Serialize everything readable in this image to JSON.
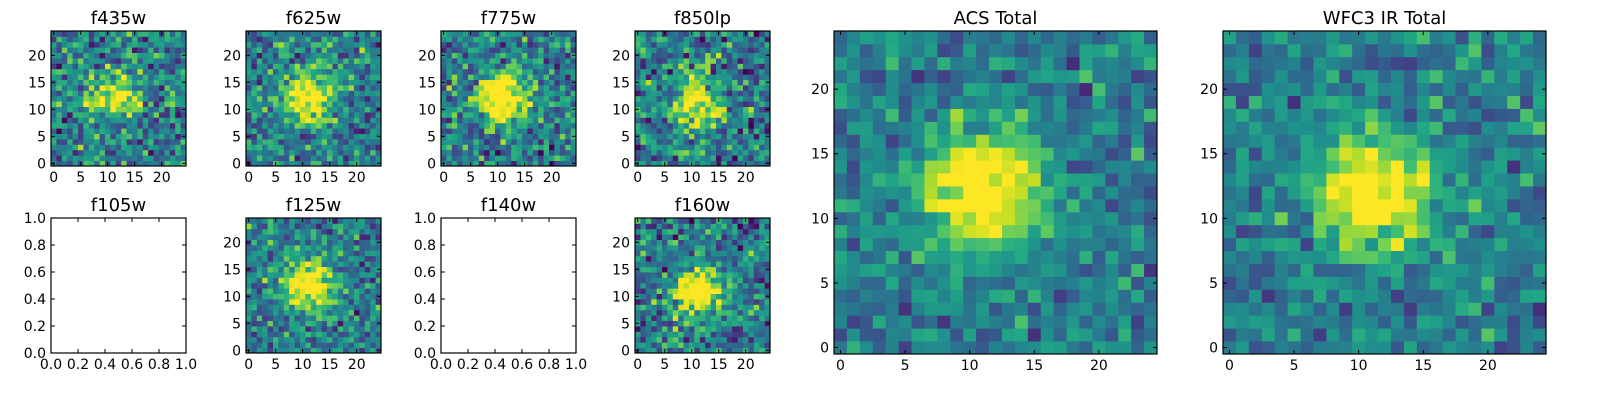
{
  "chart_data": [
    {
      "type": "heatmap",
      "title": "f435w",
      "has_image": true,
      "xlim": [
        -0.5,
        24.5
      ],
      "ylim": [
        -0.5,
        24.5
      ],
      "xticks": [
        0,
        5,
        10,
        15,
        20
      ],
      "yticks": [
        0,
        5,
        10,
        15,
        20
      ],
      "tick_labels_x": [
        "0",
        "5",
        "10",
        "15",
        "20"
      ],
      "tick_labels_y": [
        "0",
        "5",
        "10",
        "15",
        "20"
      ],
      "grid_size": [
        25,
        25
      ],
      "source_center": [
        11,
        12
      ],
      "source_peak": 0.65,
      "noise_level": 0.3
    },
    {
      "type": "heatmap",
      "title": "f625w",
      "has_image": true,
      "xlim": [
        -0.5,
        24.5
      ],
      "ylim": [
        -0.5,
        24.5
      ],
      "xticks": [
        0,
        5,
        10,
        15,
        20
      ],
      "yticks": [
        0,
        5,
        10,
        15,
        20
      ],
      "tick_labels_x": [
        "0",
        "5",
        "10",
        "15",
        "20"
      ],
      "tick_labels_y": [
        "0",
        "5",
        "10",
        "15",
        "20"
      ],
      "grid_size": [
        25,
        25
      ],
      "source_center": [
        11,
        12
      ],
      "source_peak": 0.75,
      "noise_level": 0.28
    },
    {
      "type": "heatmap",
      "title": "f775w",
      "has_image": true,
      "xlim": [
        -0.5,
        24.5
      ],
      "ylim": [
        -0.5,
        24.5
      ],
      "xticks": [
        0,
        5,
        10,
        15,
        20
      ],
      "yticks": [
        0,
        5,
        10,
        15,
        20
      ],
      "tick_labels_x": [
        "0",
        "5",
        "10",
        "15",
        "20"
      ],
      "tick_labels_y": [
        "0",
        "5",
        "10",
        "15",
        "20"
      ],
      "grid_size": [
        25,
        25
      ],
      "source_center": [
        11,
        12
      ],
      "source_peak": 0.85,
      "noise_level": 0.28
    },
    {
      "type": "heatmap",
      "title": "f850lp",
      "has_image": true,
      "xlim": [
        -0.5,
        24.5
      ],
      "ylim": [
        -0.5,
        24.5
      ],
      "xticks": [
        0,
        5,
        10,
        15,
        20
      ],
      "yticks": [
        0,
        5,
        10,
        15,
        20
      ],
      "tick_labels_x": [
        "0",
        "5",
        "10",
        "15",
        "20"
      ],
      "tick_labels_y": [
        "0",
        "5",
        "10",
        "15",
        "20"
      ],
      "grid_size": [
        25,
        25
      ],
      "source_center": [
        11,
        11
      ],
      "source_peak": 0.7,
      "noise_level": 0.32
    },
    {
      "type": "heatmap",
      "title": "f105w",
      "has_image": false,
      "xlim": [
        0.0,
        1.0
      ],
      "ylim": [
        0.0,
        1.0
      ],
      "xticks": [
        0.0,
        0.2,
        0.4,
        0.6,
        0.8,
        1.0
      ],
      "yticks": [
        0.0,
        0.2,
        0.4,
        0.6,
        0.8,
        1.0
      ],
      "tick_labels_x": [
        "0.0",
        "0.2",
        "0.4",
        "0.6",
        "0.8",
        "1.0"
      ],
      "tick_labels_y": [
        "0.0",
        "0.2",
        "0.4",
        "0.6",
        "0.8",
        "1.0"
      ]
    },
    {
      "type": "heatmap",
      "title": "f125w",
      "has_image": true,
      "xlim": [
        -0.5,
        24.5
      ],
      "ylim": [
        -0.5,
        24.5
      ],
      "xticks": [
        0,
        5,
        10,
        15,
        20
      ],
      "yticks": [
        0,
        5,
        10,
        15,
        20
      ],
      "tick_labels_x": [
        "0",
        "5",
        "10",
        "15",
        "20"
      ],
      "tick_labels_y": [
        "0",
        "5",
        "10",
        "15",
        "20"
      ],
      "grid_size": [
        25,
        25
      ],
      "source_center": [
        11,
        12
      ],
      "source_peak": 0.75,
      "noise_level": 0.26
    },
    {
      "type": "heatmap",
      "title": "f140w",
      "has_image": false,
      "xlim": [
        0.0,
        1.0
      ],
      "ylim": [
        0.0,
        1.0
      ],
      "xticks": [
        0.0,
        0.2,
        0.4,
        0.6,
        0.8,
        1.0
      ],
      "yticks": [
        0.0,
        0.2,
        0.4,
        0.6,
        0.8,
        1.0
      ],
      "tick_labels_x": [
        "0.0",
        "0.2",
        "0.4",
        "0.6",
        "0.8",
        "1.0"
      ],
      "tick_labels_y": [
        "0.0",
        "0.2",
        "0.4",
        "0.6",
        "0.8",
        "1.0"
      ]
    },
    {
      "type": "heatmap",
      "title": "f160w",
      "has_image": true,
      "xlim": [
        -0.5,
        24.5
      ],
      "ylim": [
        -0.5,
        24.5
      ],
      "xticks": [
        0,
        5,
        10,
        15,
        20
      ],
      "yticks": [
        0,
        5,
        10,
        15,
        20
      ],
      "tick_labels_x": [
        "0",
        "5",
        "10",
        "15",
        "20"
      ],
      "tick_labels_y": [
        "0",
        "5",
        "10",
        "15",
        "20"
      ],
      "grid_size": [
        25,
        25
      ],
      "source_center": [
        11,
        11
      ],
      "source_peak": 0.75,
      "noise_level": 0.3
    },
    {
      "type": "heatmap",
      "title": "ACS Total",
      "has_image": true,
      "xlim": [
        -0.5,
        24.5
      ],
      "ylim": [
        -0.5,
        24.5
      ],
      "xticks": [
        0,
        5,
        10,
        15,
        20
      ],
      "yticks": [
        0,
        5,
        10,
        15,
        20
      ],
      "tick_labels_x": [
        "0",
        "5",
        "10",
        "15",
        "20"
      ],
      "tick_labels_y": [
        "0",
        "5",
        "10",
        "15",
        "20"
      ],
      "grid_size": [
        25,
        25
      ],
      "source_center": [
        11,
        12
      ],
      "source_peak": 0.8,
      "noise_level": 0.2
    },
    {
      "type": "heatmap",
      "title": "WFC3 IR Total",
      "has_image": true,
      "xlim": [
        -0.5,
        24.5
      ],
      "ylim": [
        -0.5,
        24.5
      ],
      "xticks": [
        0,
        5,
        10,
        15,
        20
      ],
      "yticks": [
        0,
        5,
        10,
        15,
        20
      ],
      "tick_labels_x": [
        "0",
        "5",
        "10",
        "15",
        "20"
      ],
      "tick_labels_y": [
        "0",
        "5",
        "10",
        "15",
        "20"
      ],
      "grid_size": [
        25,
        25
      ],
      "source_center": [
        11,
        12
      ],
      "source_peak": 0.75,
      "noise_level": 0.2
    }
  ],
  "colormap": "viridis"
}
